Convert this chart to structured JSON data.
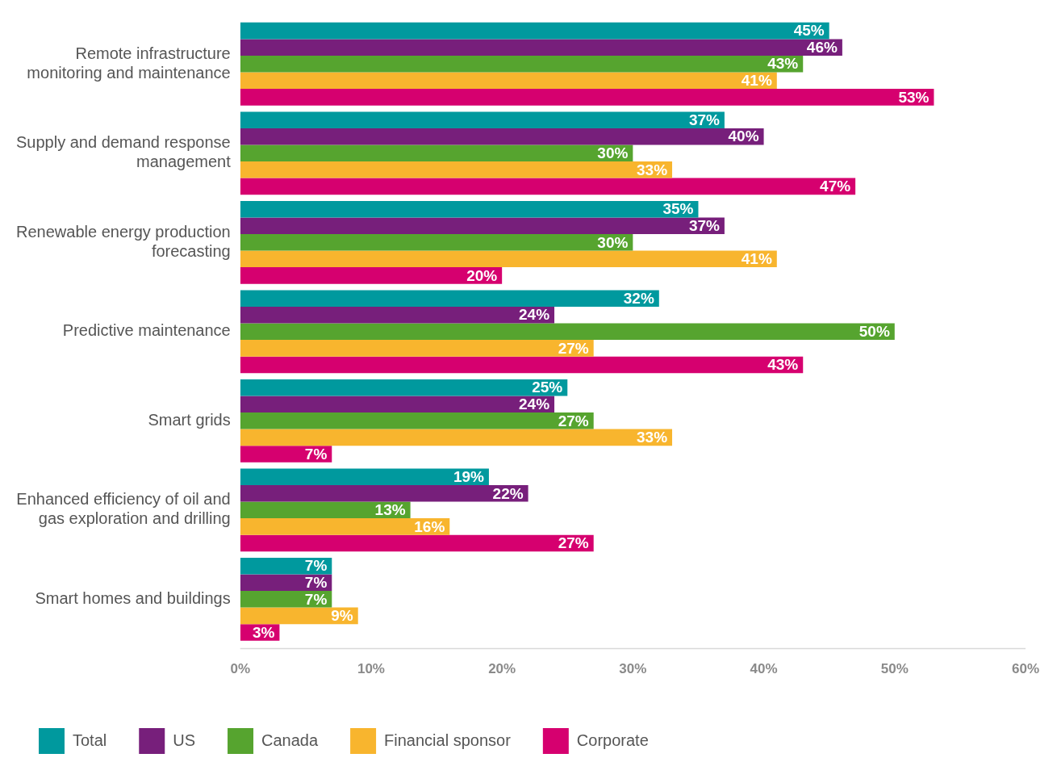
{
  "chart_data": {
    "type": "bar",
    "orientation": "horizontal",
    "categories": [
      "Remote infrastructure monitoring and maintenance",
      "Supply and demand response management",
      "Renewable energy production forecasting",
      "Predictive maintenance",
      "Smart grids",
      "Enhanced efficiency of oil and gas exploration and drilling",
      "Smart homes and buildings"
    ],
    "series": [
      {
        "name": "Total",
        "color": "#00999e",
        "values": [
          45,
          37,
          35,
          32,
          25,
          19,
          7
        ],
        "value_labels": [
          "45%",
          "37%",
          "35%",
          "32%",
          "25%",
          "19%",
          "7%"
        ]
      },
      {
        "name": "US",
        "color": "#771f7b",
        "values": [
          46,
          40,
          37,
          24,
          24,
          22,
          7
        ],
        "value_labels": [
          "46%",
          "40%",
          "37%",
          "24%",
          "24%",
          "22%",
          "7%"
        ]
      },
      {
        "name": "Canada",
        "color": "#56a42f",
        "values": [
          43,
          30,
          30,
          50,
          27,
          13,
          7
        ],
        "value_labels": [
          "43%",
          "30%",
          "30%",
          "50%",
          "27%",
          "13%",
          "7%"
        ]
      },
      {
        "name": "Financial sponsor",
        "color": "#f8b52e",
        "values": [
          41,
          33,
          41,
          27,
          33,
          16,
          9
        ],
        "value_labels": [
          "41%",
          "33%",
          "41%",
          "27%",
          "33%",
          "16%",
          "9%"
        ]
      },
      {
        "name": "Corporate",
        "color": "#d6006f",
        "values": [
          53,
          47,
          20,
          43,
          7,
          27,
          3
        ],
        "value_labels": [
          "53%",
          "47%",
          "20%",
          "43%",
          "7%",
          "27%",
          "3%"
        ]
      }
    ],
    "xlim": [
      0,
      60
    ],
    "xticks": [
      {
        "value": 0,
        "label": "0%"
      },
      {
        "value": 10,
        "label": "10%"
      },
      {
        "value": 20,
        "label": "20%"
      },
      {
        "value": 30,
        "label": "30%"
      },
      {
        "value": 40,
        "label": "40%"
      },
      {
        "value": 50,
        "label": "50%"
      },
      {
        "value": 60,
        "label": "60%"
      }
    ],
    "grid": false,
    "legend": "bottom"
  }
}
